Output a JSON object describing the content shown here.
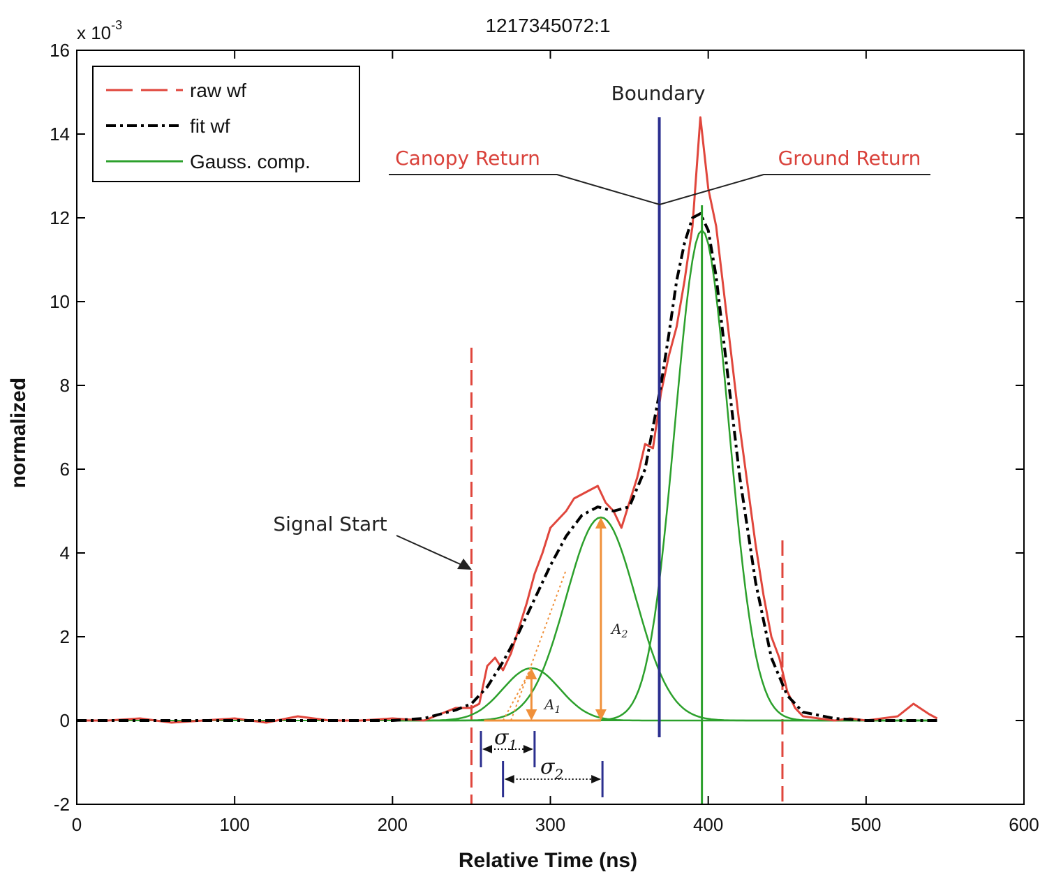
{
  "chart_data": {
    "type": "line",
    "title": "1217345072:1",
    "xlabel": "Relative Time (ns)",
    "ylabel": "normalized",
    "y_exponent_label": "x 10",
    "y_exponent_power": "-3",
    "xlim": [
      0,
      600
    ],
    "ylim": [
      -2,
      16
    ],
    "xticks": [
      0,
      100,
      200,
      300,
      400,
      500,
      600
    ],
    "yticks": [
      -2,
      0,
      2,
      4,
      6,
      8,
      10,
      12,
      14,
      16
    ],
    "grid": false,
    "legend_position": "top-left",
    "legend": [
      {
        "label": "raw wf",
        "color": "#e0463c",
        "style": "dashed"
      },
      {
        "label": "fit wf",
        "color": "#000000",
        "style": "dash-dot"
      },
      {
        "label": "Gauss. comp.",
        "color": "#2ca02c",
        "style": "solid"
      }
    ],
    "series": [
      {
        "name": "raw wf",
        "x": [
          0,
          20,
          40,
          60,
          80,
          100,
          120,
          140,
          160,
          180,
          200,
          220,
          230,
          240,
          250,
          255,
          260,
          265,
          270,
          275,
          280,
          285,
          290,
          295,
          300,
          305,
          310,
          315,
          320,
          325,
          330,
          335,
          340,
          345,
          350,
          355,
          360,
          365,
          370,
          375,
          380,
          385,
          390,
          395,
          400,
          405,
          410,
          415,
          420,
          425,
          430,
          435,
          440,
          445,
          450,
          455,
          460,
          470,
          480,
          490,
          500,
          510,
          520,
          530,
          540,
          545
        ],
        "y": [
          0.0,
          0.0,
          0.05,
          -0.05,
          0.0,
          0.05,
          -0.05,
          0.1,
          0.0,
          0.0,
          0.05,
          0.0,
          0.15,
          0.3,
          0.3,
          0.4,
          1.3,
          1.5,
          1.2,
          1.6,
          2.2,
          2.8,
          3.5,
          4.0,
          4.6,
          4.8,
          5.0,
          5.3,
          5.4,
          5.5,
          5.6,
          5.2,
          5.0,
          4.6,
          5.2,
          5.8,
          6.6,
          6.5,
          7.8,
          8.7,
          9.4,
          10.5,
          11.8,
          14.4,
          12.7,
          11.8,
          10.2,
          8.6,
          7.0,
          5.6,
          4.2,
          3.0,
          2.0,
          1.5,
          0.7,
          0.3,
          0.1,
          0.05,
          0.0,
          0.05,
          0.0,
          0.05,
          0.1,
          0.4,
          0.15,
          0.05
        ]
      },
      {
        "name": "fit wf",
        "x": [
          0,
          50,
          100,
          150,
          200,
          220,
          230,
          240,
          250,
          260,
          270,
          280,
          290,
          300,
          310,
          320,
          330,
          340,
          350,
          360,
          370,
          375,
          380,
          385,
          390,
          395,
          400,
          405,
          410,
          415,
          420,
          430,
          440,
          450,
          460,
          480,
          500,
          520,
          545
        ],
        "y": [
          0.0,
          0.0,
          0.0,
          0.0,
          0.0,
          0.05,
          0.15,
          0.25,
          0.4,
          0.8,
          1.4,
          2.1,
          2.9,
          3.7,
          4.4,
          4.9,
          5.1,
          5.0,
          5.1,
          6.0,
          8.0,
          9.2,
          10.5,
          11.4,
          12.0,
          12.1,
          11.7,
          10.6,
          9.0,
          7.4,
          5.8,
          3.3,
          1.5,
          0.6,
          0.2,
          0.05,
          0.0,
          0.0,
          0.0
        ]
      }
    ],
    "gaussian_components": [
      {
        "label": "A₁",
        "center": 288,
        "amplitude": 1.25,
        "sigma": 18
      },
      {
        "label": "A₂",
        "center": 332,
        "amplitude": 4.85,
        "sigma": 22
      },
      {
        "label": "",
        "center": 396,
        "amplitude": 11.7,
        "sigma": 17
      }
    ],
    "annotations": {
      "boundary_label": "Boundary",
      "boundary_x": 369,
      "canopy_label": "Canopy Return",
      "ground_label": "Ground Return",
      "signal_start_label": "Signal Start",
      "signal_start_x": 250,
      "signal_end_x": 447,
      "ground_peak_x": 396,
      "sigma1_label": "σ",
      "sigma1_sub": "1",
      "sigma1_range": [
        256,
        290
      ],
      "sigma2_label": "σ",
      "sigma2_sub": "2",
      "sigma2_range": [
        270,
        333
      ],
      "a1_label": "A",
      "a1_sub": "1",
      "a2_label": "A",
      "a2_sub": "2"
    },
    "colors": {
      "raw": "#e0463c",
      "fit": "#000000",
      "gauss": "#2ca02c",
      "boundary": "#2b2f8f",
      "orange": "#f0903a",
      "annotation_red": "#d9413a"
    }
  }
}
